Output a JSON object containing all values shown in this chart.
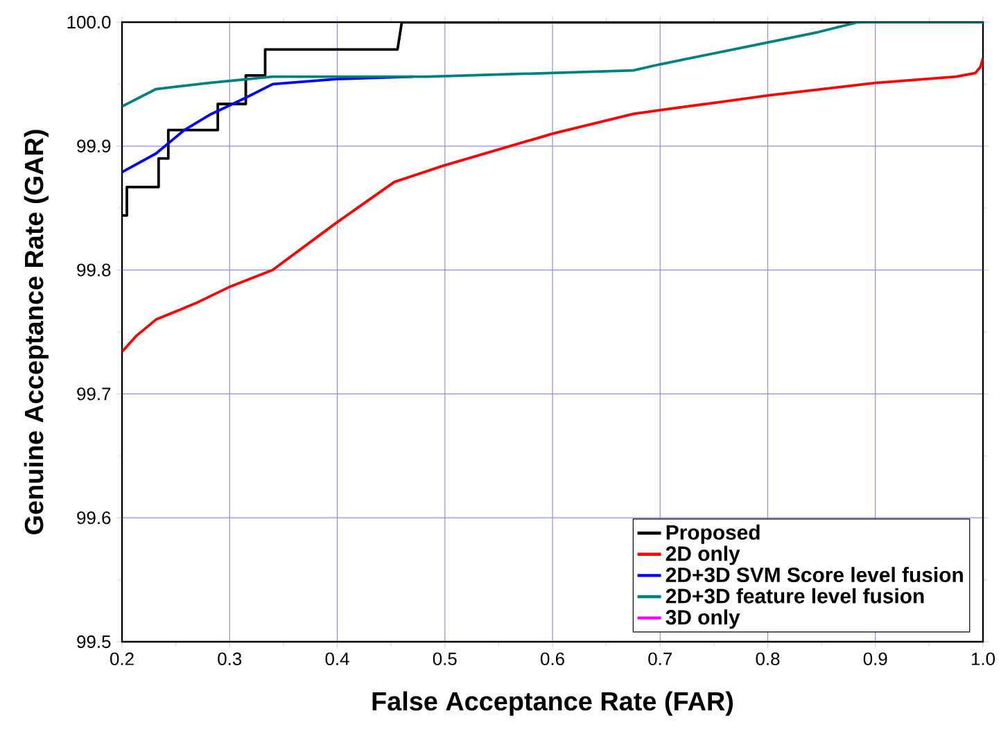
{
  "chart_data": {
    "type": "line",
    "xlabel": "False Acceptance Rate (FAR)",
    "ylabel": "Genuine Acceptance Rate (GAR)",
    "xlim": [
      0.2,
      1.0
    ],
    "ylim": [
      99.5,
      100.0
    ],
    "xticks": [
      0.2,
      0.3,
      0.4,
      0.5,
      0.6,
      0.7,
      0.8,
      0.9,
      {
        "value": 1.0,
        "label": "1.0"
      }
    ],
    "yticks": [
      99.5,
      99.6,
      99.7,
      99.8,
      99.9,
      {
        "value": 100.0,
        "label": "100.0"
      }
    ],
    "grid": true,
    "legend": "bottom right",
    "marker": "none",
    "line_style": "solid",
    "series": [
      {
        "name": "Proposed",
        "color": "#000000",
        "x": [
          0.2,
          0.2045,
          0.2045,
          0.234,
          0.234,
          0.243,
          0.243,
          0.289,
          0.289,
          0.315,
          0.315,
          0.333,
          0.333,
          0.456,
          0.46,
          1.0
        ],
        "values": [
          99.844,
          99.844,
          99.867,
          99.867,
          99.89,
          99.89,
          99.913,
          99.913,
          99.934,
          99.934,
          99.957,
          99.957,
          99.978,
          99.978,
          100.0,
          100.0
        ]
      },
      {
        "name": "2D only",
        "color": "#ff0000",
        "x": [
          0.2,
          0.2135,
          0.2316,
          0.268,
          0.299,
          0.34,
          0.399,
          0.453,
          0.498,
          0.6,
          0.675,
          0.7,
          0.802,
          0.9,
          0.975,
          0.993,
          0.9977,
          1.0
        ],
        "values": [
          99.734,
          99.747,
          99.76,
          99.773,
          99.786,
          99.8,
          99.838,
          99.871,
          99.884,
          99.91,
          99.926,
          99.929,
          99.941,
          99.951,
          99.956,
          99.959,
          99.964,
          99.971
        ]
      },
      {
        "name": "2D+3D SVM Score level fusion",
        "color": "#0000ff",
        "x": [
          0.2,
          0.2316,
          0.258,
          0.281,
          0.315,
          0.34,
          0.399,
          0.47
        ],
        "values": [
          99.879,
          99.894,
          99.913,
          99.925,
          99.939,
          99.95,
          99.954,
          99.956
        ]
      },
      {
        "name": "2D+3D feature level fusion",
        "color": "#008080",
        "x": [
          0.2,
          0.2316,
          0.281,
          0.34,
          0.484,
          0.675,
          0.7,
          0.802,
          0.847,
          0.884,
          1.0
        ],
        "values": [
          99.932,
          99.946,
          99.951,
          99.956,
          99.956,
          99.961,
          99.966,
          99.984,
          99.992,
          100.0,
          100.0
        ]
      },
      {
        "name": "3D only",
        "color": "#ff00ff"
      }
    ]
  }
}
